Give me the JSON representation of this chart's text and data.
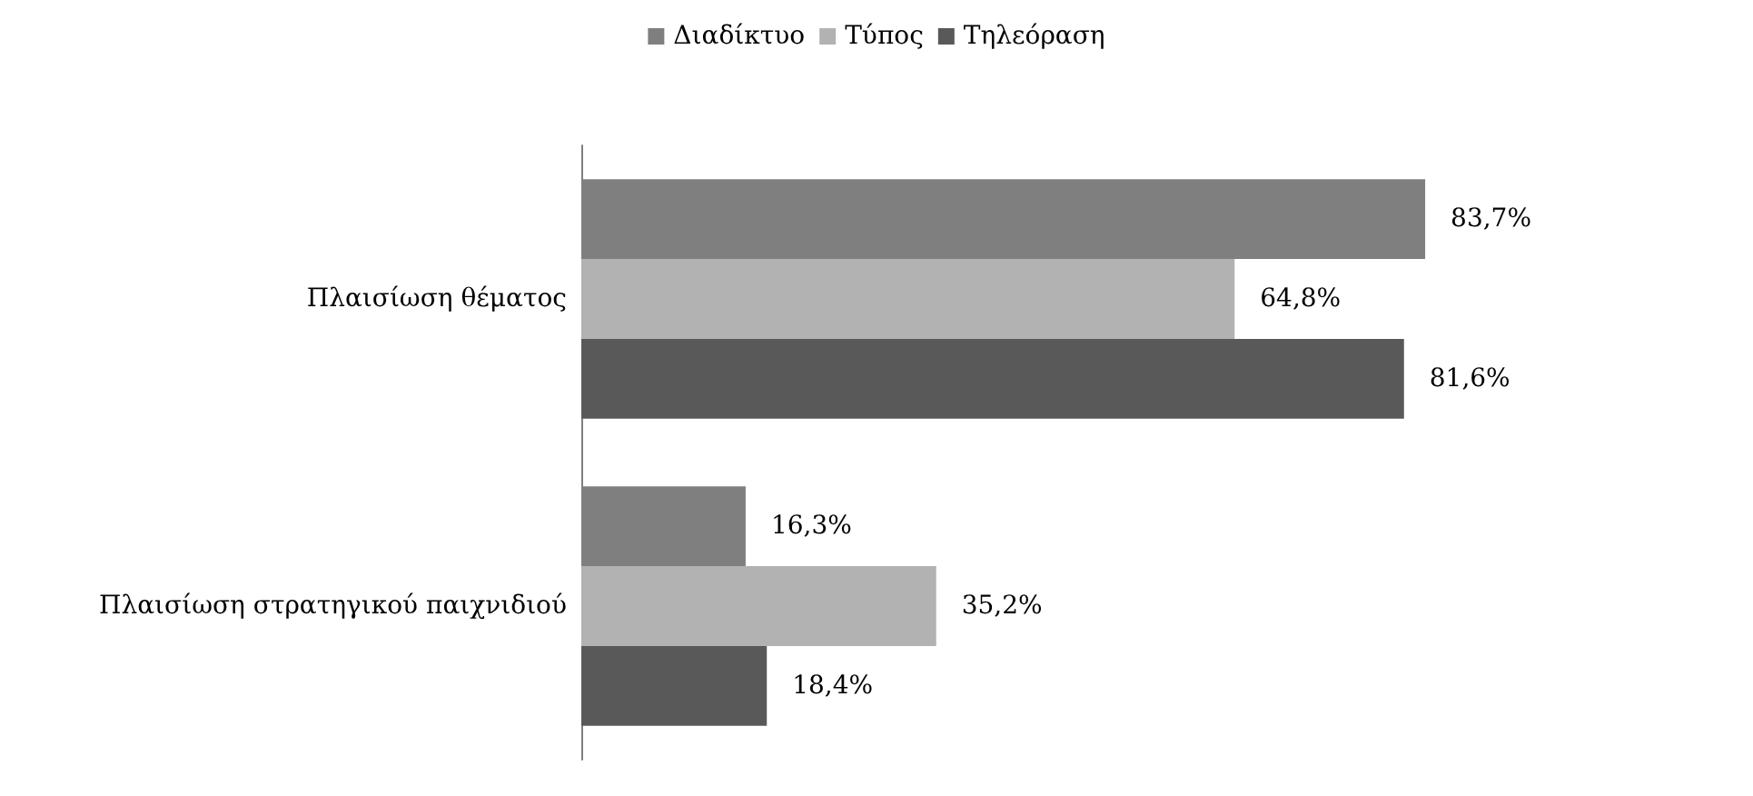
{
  "chart_data": {
    "type": "bar",
    "orientation": "horizontal",
    "categories": [
      "Πλαισίωση θέματος",
      "Πλαισίωση στρατηγικού παιχνιδιού"
    ],
    "series": [
      {
        "name": "Διαδίκτυο",
        "color": "#7f7f7f",
        "values": [
          83.7,
          16.3
        ],
        "value_labels": [
          "83,7%",
          "16,3%"
        ]
      },
      {
        "name": "Τύπος",
        "color": "#b2b2b2",
        "values": [
          64.8,
          35.2
        ],
        "value_labels": [
          "64,8%",
          "35,2%"
        ]
      },
      {
        "name": "Τηλεόραση",
        "color": "#595959",
        "values": [
          81.6,
          18.4
        ],
        "value_labels": [
          "81,6%",
          "18,4%"
        ]
      }
    ],
    "legend": "top",
    "grid": false
  }
}
